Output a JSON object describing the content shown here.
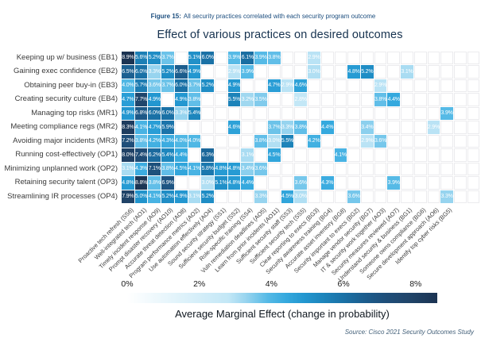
{
  "figure_caption": {
    "prefix": "Figure 15:",
    "text": "All security practices correlated with each security program outcome"
  },
  "title": "Effect of various practices on desired outcomes",
  "chart_data": {
    "type": "heatmap",
    "title": "Effect of various practices on desired outcomes",
    "unit": "%",
    "value_description": "Average marginal effect of each practice on each outcome",
    "y_categories": [
      "Keeping up w/ business (EB1)",
      "Gaining exec confidence (EB2)",
      "Obtaining peer buy-in (EB3)",
      "Creating security culture (EB4)",
      "Managing top risks (MR1)",
      "Meeting compliance regs (MR2)",
      "Avoiding major incidents (MR3)",
      "Running cost-effectively (OP1)",
      "Minimizing unplanned work (OP2)",
      "Retaining security talent (OP3)",
      "Streamlining IR processes (OP4)"
    ],
    "x_categories": [
      "Proactive tech refresh (SS6)",
      "Well-integrated tech (AO1)",
      "Timely incident response (AO9)",
      "Prompt disaster recovery (AO10)",
      "Accurate threat detection (AO8)",
      "Program performance metrics (AO2)",
      "Use automation effectively (AO4)",
      "Sound security strategy (SS1)",
      "Sufficient security budget (SS2)",
      "Role-specific training (SS4)",
      "Vuln remediation deadlines (AO5)",
      "Learn from prior incidents (AO11)",
      "Sufficient security staff (SS3)",
      "Sufficient security tech (SS5)",
      "Clear reporting to execs (BG3)",
      "Security awareness training (BG4)",
      "Accurate asset inventory (BG8)",
      "Security important to execs (BG2)",
      "Manage vendor security (BG7)",
      "IT & security work together (AO3)",
      "Security measures reviewed (AO7)",
      "Understand security & business (BG1)",
      "Someone owns compliance (BG6)",
      "Secure development approach (AO6)",
      "Identify top cyber risks (BG5)"
    ],
    "values": [
      [
        8.9,
        5.6,
        5.2,
        3.7,
        null,
        5.1,
        6.0,
        null,
        3.9,
        6.1,
        3.9,
        3.8,
        null,
        null,
        2.9,
        null,
        null,
        null,
        null,
        null,
        null,
        null,
        null,
        null,
        null
      ],
      [
        6.5,
        6.0,
        3.3,
        5.2,
        6.6,
        4.9,
        null,
        null,
        2.9,
        3.9,
        null,
        null,
        null,
        null,
        3.0,
        null,
        null,
        4.8,
        5.2,
        null,
        null,
        3.1,
        null,
        null,
        null
      ],
      [
        4.0,
        5.7,
        3.6,
        3.7,
        6.0,
        3.7,
        5.2,
        null,
        4.9,
        null,
        null,
        4.7,
        2.9,
        4.6,
        null,
        null,
        null,
        null,
        null,
        2.9,
        null,
        null,
        null,
        null,
        null
      ],
      [
        4.7,
        7.7,
        4.9,
        null,
        4.9,
        3.8,
        null,
        null,
        5.5,
        3.2,
        3.5,
        null,
        null,
        2.8,
        null,
        null,
        null,
        null,
        null,
        3.8,
        4.4,
        null,
        null,
        null,
        null
      ],
      [
        4.9,
        6.8,
        6.0,
        6.0,
        3.3,
        5.4,
        null,
        null,
        null,
        null,
        null,
        null,
        null,
        null,
        null,
        null,
        null,
        null,
        null,
        null,
        null,
        null,
        null,
        null,
        3.9
      ],
      [
        8.3,
        4.1,
        4.7,
        5.9,
        null,
        null,
        null,
        null,
        4.6,
        null,
        null,
        3.7,
        3.3,
        3.8,
        null,
        4.4,
        null,
        null,
        3.4,
        null,
        null,
        null,
        null,
        2.9,
        null
      ],
      [
        7.2,
        3.8,
        4.2,
        4.3,
        4.0,
        4.0,
        null,
        null,
        null,
        null,
        3.8,
        3.0,
        5.5,
        null,
        4.2,
        null,
        null,
        null,
        2.9,
        3.6,
        null,
        null,
        null,
        null,
        null
      ],
      [
        8.0,
        7.4,
        6.2,
        5.4,
        4.4,
        null,
        6.3,
        null,
        null,
        3.1,
        null,
        4.5,
        null,
        null,
        null,
        null,
        4.1,
        null,
        null,
        null,
        null,
        null,
        null,
        null,
        null
      ],
      [
        3.1,
        4.3,
        7.1,
        3.8,
        4.5,
        4.1,
        5.8,
        4.8,
        4.8,
        3.4,
        3.6,
        null,
        null,
        null,
        null,
        null,
        null,
        null,
        null,
        null,
        null,
        null,
        null,
        null,
        null
      ],
      [
        4.8,
        8.8,
        3.8,
        6.9,
        null,
        null,
        3.0,
        5.1,
        4.8,
        4.4,
        null,
        null,
        null,
        3.6,
        null,
        4.3,
        null,
        null,
        null,
        null,
        3.9,
        null,
        null,
        null,
        null
      ],
      [
        7.9,
        5.0,
        4.1,
        5.2,
        4.9,
        3.1,
        5.2,
        null,
        null,
        null,
        3.3,
        null,
        4.5,
        3.0,
        null,
        null,
        null,
        3.6,
        null,
        null,
        null,
        null,
        null,
        null,
        3.3
      ]
    ],
    "legend": {
      "caption": "Average Marginal Effect (change in probability)",
      "tick_labels": [
        "0%",
        "2%",
        "4%",
        "6%",
        "8%"
      ],
      "tick_values": [
        0,
        2,
        4,
        6,
        8
      ],
      "scale_min": 0,
      "scale_max": 8.6,
      "position": "bottom"
    }
  },
  "source": "Source: Cisco 2021 Security Outcomes Study",
  "style": {
    "color_ramp": [
      [
        2.8,
        "#c3e7f6"
      ],
      [
        3.3,
        "#97d4ef"
      ],
      [
        3.9,
        "#56bae6"
      ],
      [
        4.4,
        "#35a9de"
      ],
      [
        4.9,
        "#2397d0"
      ],
      [
        5.4,
        "#1d86bd"
      ],
      [
        6.0,
        "#1a71a6"
      ],
      [
        6.6,
        "#1c5d8d"
      ],
      [
        7.2,
        "#1f4e79"
      ],
      [
        7.9,
        "#204367"
      ],
      [
        8.9,
        "#1b3352"
      ]
    ],
    "empty_cell_border": "#ebebee",
    "cell_text": "#ffffff",
    "axis_text": "#3a3a3a",
    "figure_caption_color": "#1b4d7e",
    "title_color": "#16324f",
    "legend_caption_color": "#101820",
    "source_color": "#44617a"
  }
}
